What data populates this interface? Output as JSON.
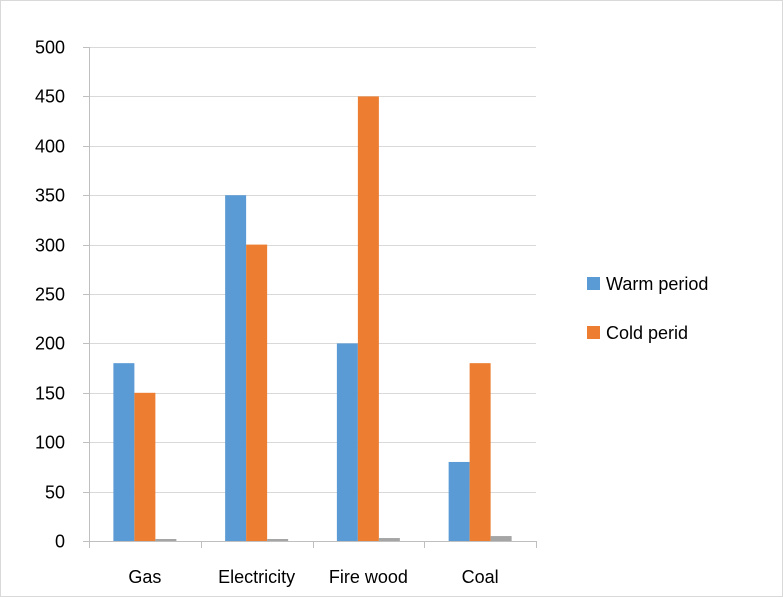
{
  "chart_data": {
    "type": "bar",
    "title": "",
    "xlabel": "",
    "ylabel": "",
    "categories": [
      "Gas",
      "Electricity",
      "Fire wood",
      "Coal"
    ],
    "series": [
      {
        "name": "Warm period",
        "values": [
          180,
          350,
          200,
          80
        ],
        "color": "#5b9bd5"
      },
      {
        "name": "Cold perid",
        "values": [
          150,
          300,
          450,
          180
        ],
        "color": "#ed7d31"
      },
      {
        "name": "",
        "values": [
          2,
          2,
          3,
          5
        ],
        "color": "#a5a5a5",
        "in_legend": false
      }
    ],
    "ylim": [
      0,
      500
    ],
    "yticks": [
      0,
      50,
      100,
      150,
      200,
      250,
      300,
      350,
      400,
      450,
      500
    ],
    "grid": true,
    "legend_position": "right",
    "gridline_color": "#d9d9d9",
    "axis_color": "#bfbfbf"
  }
}
